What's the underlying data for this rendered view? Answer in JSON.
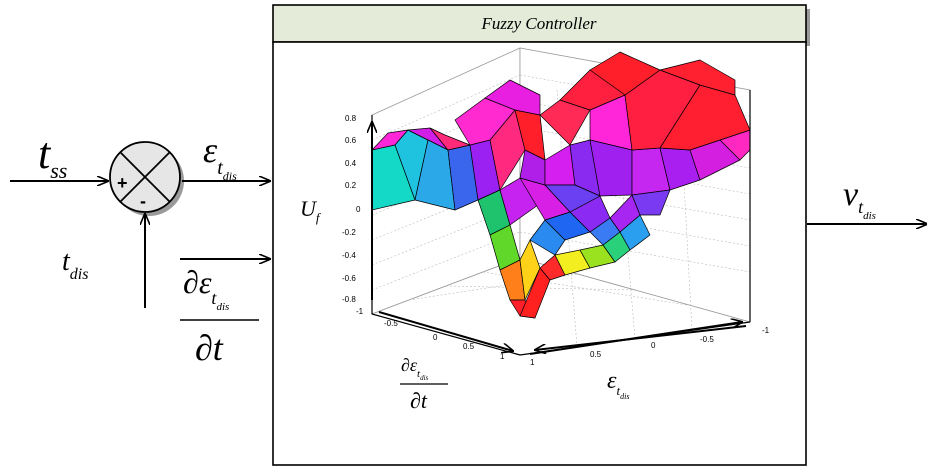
{
  "controller": {
    "title": "Fuzzy  Controller",
    "header_color": "#e4ecd9"
  },
  "summing_junction": {
    "plus_sign": "+",
    "minus_sign": "-",
    "fill_color": "#e6e6e6"
  },
  "signals": {
    "reference": {
      "base": "t",
      "sub": "ss"
    },
    "feedback": {
      "base": "t",
      "sub": "dis"
    },
    "error": {
      "base": "ε",
      "sub_base": "t",
      "sub_sub": "dis"
    },
    "error_derivative": {
      "numerator_prefix": "∂ε",
      "sub_base": "t",
      "sub_sub": "dis",
      "denominator": "∂t"
    },
    "output": {
      "base": "v",
      "sub_base": "t",
      "sub_sub": "dis"
    }
  },
  "surface_plot": {
    "z_axis_label": {
      "base": "U",
      "sub": "f"
    },
    "z_ticks": [
      "0.8",
      "0.6",
      "0.4",
      "0.2",
      "0",
      "-0.2",
      "-0.4",
      "-0.6",
      "-0.8"
    ],
    "depth_axis_ticks": [
      "-1",
      "-0.5",
      "0",
      "0.5",
      "1"
    ],
    "width_axis_ticks": [
      "1",
      "0.5",
      "0",
      "-0.5",
      "-1"
    ],
    "x_axis_label": {
      "base": "ε",
      "sub_base": "t",
      "sub_sub": "dis"
    },
    "y_axis_label": {
      "numerator_prefix": "∂ε",
      "sub_base": "t",
      "sub_sub": "dis",
      "denominator": "∂t"
    }
  }
}
